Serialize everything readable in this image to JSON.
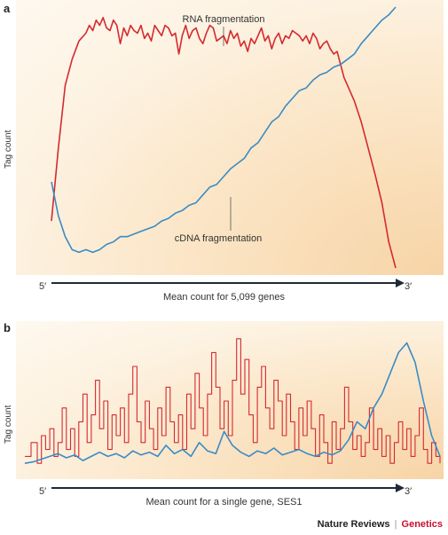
{
  "panels": {
    "a": {
      "letter": "a"
    },
    "b": {
      "letter": "b"
    }
  },
  "footer": {
    "brand": "Nature Reviews",
    "separator": "|",
    "journal": "Genetics"
  },
  "colors": {
    "red": "#d42a2f",
    "blue": "#3a8cc5",
    "axis": "#1e2a38"
  },
  "chart_data": [
    {
      "type": "line",
      "panel": "a",
      "ylabel": "Tag count",
      "xlabel": "Mean count for 5,099 genes",
      "x_start_label": "5′",
      "x_end_label": "3′",
      "xlim": [
        0,
        1
      ],
      "ylim": [
        0,
        1
      ],
      "annotations": [
        "RNA fragmentation",
        "cDNA fragmentation"
      ],
      "series": [
        {
          "name": "RNA fragmentation",
          "color": "#d42a2f",
          "x": [
            0.0,
            0.02,
            0.04,
            0.06,
            0.08,
            0.1,
            0.11,
            0.12,
            0.13,
            0.14,
            0.15,
            0.16,
            0.17,
            0.18,
            0.19,
            0.2,
            0.21,
            0.22,
            0.23,
            0.24,
            0.25,
            0.26,
            0.27,
            0.28,
            0.29,
            0.3,
            0.31,
            0.32,
            0.33,
            0.34,
            0.35,
            0.36,
            0.37,
            0.38,
            0.39,
            0.4,
            0.41,
            0.42,
            0.43,
            0.44,
            0.45,
            0.46,
            0.47,
            0.48,
            0.49,
            0.5,
            0.51,
            0.52,
            0.53,
            0.54,
            0.55,
            0.56,
            0.57,
            0.58,
            0.59,
            0.6,
            0.61,
            0.62,
            0.63,
            0.64,
            0.65,
            0.66,
            0.67,
            0.68,
            0.69,
            0.7,
            0.71,
            0.72,
            0.73,
            0.74,
            0.75,
            0.76,
            0.77,
            0.78,
            0.79,
            0.8,
            0.81,
            0.82,
            0.83,
            0.84,
            0.85,
            0.86,
            0.88,
            0.9,
            0.92,
            0.94,
            0.96,
            0.98,
            1.0
          ],
          "y": [
            0.18,
            0.46,
            0.7,
            0.8,
            0.87,
            0.9,
            0.93,
            0.91,
            0.95,
            0.93,
            0.96,
            0.92,
            0.91,
            0.95,
            0.93,
            0.86,
            0.92,
            0.89,
            0.93,
            0.91,
            0.9,
            0.93,
            0.88,
            0.9,
            0.87,
            0.93,
            0.91,
            0.89,
            0.93,
            0.92,
            0.89,
            0.9,
            0.82,
            0.89,
            0.93,
            0.88,
            0.91,
            0.92,
            0.88,
            0.86,
            0.9,
            0.93,
            0.92,
            0.87,
            0.88,
            0.89,
            0.86,
            0.91,
            0.88,
            0.9,
            0.85,
            0.87,
            0.83,
            0.88,
            0.86,
            0.89,
            0.92,
            0.87,
            0.89,
            0.84,
            0.88,
            0.9,
            0.86,
            0.89,
            0.88,
            0.91,
            0.9,
            0.89,
            0.87,
            0.89,
            0.86,
            0.9,
            0.88,
            0.84,
            0.86,
            0.87,
            0.84,
            0.82,
            0.83,
            0.78,
            0.73,
            0.7,
            0.64,
            0.56,
            0.46,
            0.36,
            0.25,
            0.1,
            0.0
          ]
        },
        {
          "name": "cDNA fragmentation",
          "color": "#3a8cc5",
          "x": [
            0.0,
            0.02,
            0.04,
            0.06,
            0.08,
            0.1,
            0.12,
            0.14,
            0.16,
            0.18,
            0.2,
            0.22,
            0.24,
            0.26,
            0.28,
            0.3,
            0.32,
            0.34,
            0.36,
            0.38,
            0.4,
            0.42,
            0.44,
            0.46,
            0.48,
            0.5,
            0.52,
            0.54,
            0.56,
            0.58,
            0.6,
            0.62,
            0.64,
            0.66,
            0.68,
            0.7,
            0.72,
            0.74,
            0.76,
            0.78,
            0.8,
            0.82,
            0.84,
            0.86,
            0.88,
            0.9,
            0.92,
            0.94,
            0.96,
            0.98,
            1.0
          ],
          "y": [
            0.33,
            0.2,
            0.12,
            0.07,
            0.06,
            0.07,
            0.06,
            0.07,
            0.09,
            0.1,
            0.12,
            0.12,
            0.13,
            0.14,
            0.15,
            0.16,
            0.18,
            0.19,
            0.21,
            0.22,
            0.24,
            0.25,
            0.28,
            0.31,
            0.32,
            0.35,
            0.38,
            0.4,
            0.42,
            0.46,
            0.48,
            0.52,
            0.56,
            0.58,
            0.62,
            0.65,
            0.68,
            0.69,
            0.72,
            0.74,
            0.75,
            0.77,
            0.78,
            0.8,
            0.82,
            0.86,
            0.89,
            0.92,
            0.95,
            0.97,
            1.0
          ]
        }
      ]
    },
    {
      "type": "line",
      "panel": "b",
      "ylabel": "Tag count",
      "xlabel": "Mean count for a single gene, SES1",
      "x_start_label": "5′",
      "x_end_label": "3′",
      "xlim": [
        0,
        1
      ],
      "ylim": [
        0,
        1
      ],
      "series": [
        {
          "color": "#d42a2f",
          "step": true,
          "x": [
            0.0,
            0.015,
            0.03,
            0.04,
            0.05,
            0.06,
            0.07,
            0.08,
            0.09,
            0.1,
            0.11,
            0.12,
            0.13,
            0.14,
            0.15,
            0.16,
            0.17,
            0.18,
            0.19,
            0.2,
            0.21,
            0.22,
            0.23,
            0.24,
            0.25,
            0.26,
            0.27,
            0.28,
            0.29,
            0.3,
            0.31,
            0.32,
            0.33,
            0.34,
            0.35,
            0.36,
            0.37,
            0.38,
            0.39,
            0.4,
            0.41,
            0.42,
            0.43,
            0.44,
            0.45,
            0.46,
            0.47,
            0.48,
            0.49,
            0.5,
            0.51,
            0.52,
            0.53,
            0.54,
            0.55,
            0.56,
            0.57,
            0.58,
            0.59,
            0.6,
            0.61,
            0.62,
            0.63,
            0.64,
            0.65,
            0.66,
            0.67,
            0.68,
            0.69,
            0.7,
            0.71,
            0.72,
            0.73,
            0.74,
            0.75,
            0.76,
            0.77,
            0.78,
            0.79,
            0.8,
            0.81,
            0.82,
            0.83,
            0.84,
            0.85,
            0.86,
            0.87,
            0.88,
            0.89,
            0.9,
            0.91,
            0.92,
            0.93,
            0.94,
            0.95,
            0.96,
            0.97,
            0.98,
            0.99,
            1.0
          ],
          "y": [
            0.1,
            0.2,
            0.05,
            0.25,
            0.15,
            0.3,
            0.1,
            0.2,
            0.45,
            0.15,
            0.3,
            0.1,
            0.35,
            0.55,
            0.2,
            0.4,
            0.65,
            0.3,
            0.5,
            0.15,
            0.4,
            0.25,
            0.45,
            0.2,
            0.55,
            0.75,
            0.35,
            0.2,
            0.5,
            0.3,
            0.15,
            0.45,
            0.25,
            0.6,
            0.35,
            0.2,
            0.4,
            0.15,
            0.55,
            0.3,
            0.7,
            0.45,
            0.25,
            0.55,
            0.85,
            0.6,
            0.3,
            0.5,
            0.25,
            0.65,
            0.95,
            0.55,
            0.8,
            0.4,
            0.2,
            0.6,
            0.75,
            0.45,
            0.3,
            0.65,
            0.5,
            0.25,
            0.55,
            0.35,
            0.15,
            0.45,
            0.25,
            0.5,
            0.3,
            0.1,
            0.4,
            0.2,
            0.05,
            0.35,
            0.15,
            0.3,
            0.6,
            0.35,
            0.15,
            0.25,
            0.1,
            0.2,
            0.45,
            0.15,
            0.3,
            0.1,
            0.25,
            0.05,
            0.2,
            0.35,
            0.15,
            0.3,
            0.1,
            0.25,
            0.45,
            0.15,
            0.05,
            0.2,
            0.1,
            0.05
          ]
        },
        {
          "color": "#3a8cc5",
          "x": [
            0.0,
            0.02,
            0.04,
            0.06,
            0.08,
            0.1,
            0.12,
            0.14,
            0.16,
            0.18,
            0.2,
            0.22,
            0.24,
            0.26,
            0.28,
            0.3,
            0.32,
            0.34,
            0.36,
            0.38,
            0.4,
            0.42,
            0.44,
            0.46,
            0.48,
            0.5,
            0.52,
            0.54,
            0.56,
            0.58,
            0.6,
            0.62,
            0.64,
            0.66,
            0.68,
            0.7,
            0.72,
            0.74,
            0.76,
            0.78,
            0.8,
            0.82,
            0.84,
            0.86,
            0.88,
            0.9,
            0.92,
            0.94,
            0.96,
            0.98,
            1.0
          ],
          "y": [
            0.05,
            0.06,
            0.08,
            0.1,
            0.12,
            0.09,
            0.11,
            0.07,
            0.1,
            0.13,
            0.1,
            0.12,
            0.09,
            0.14,
            0.11,
            0.13,
            0.1,
            0.18,
            0.12,
            0.15,
            0.1,
            0.2,
            0.14,
            0.12,
            0.28,
            0.18,
            0.13,
            0.1,
            0.14,
            0.12,
            0.16,
            0.11,
            0.13,
            0.15,
            0.12,
            0.1,
            0.13,
            0.11,
            0.14,
            0.22,
            0.35,
            0.3,
            0.45,
            0.55,
            0.7,
            0.85,
            0.92,
            0.78,
            0.5,
            0.25,
            0.1
          ]
        }
      ]
    }
  ]
}
